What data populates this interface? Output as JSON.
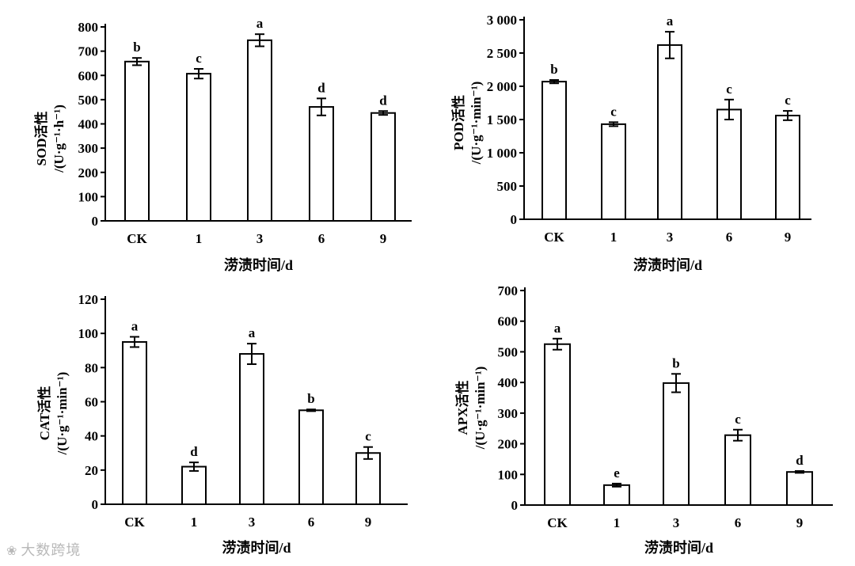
{
  "watermark": "大数跨境",
  "chart_data": [
    {
      "type": "bar",
      "ylabel": "SOD活性",
      "yunit": "/(U·g⁻¹·h⁻¹)",
      "xlabel": "涝渍时间/d",
      "categories": [
        "CK",
        "1",
        "3",
        "6",
        "9"
      ],
      "values": [
        657,
        607,
        745,
        470,
        445
      ],
      "errors": [
        15,
        20,
        25,
        35,
        8
      ],
      "letters": [
        "b",
        "c",
        "a",
        "d",
        "d"
      ],
      "ylim": [
        0,
        800
      ],
      "yticks": [
        0,
        100,
        200,
        300,
        400,
        500,
        600,
        700,
        800
      ],
      "ytick_labels": [
        "0",
        "100",
        "200",
        "300",
        "400",
        "500",
        "600",
        "700",
        "800"
      ]
    },
    {
      "type": "bar",
      "ylabel": "POD活性",
      "yunit": "/(U·g⁻¹·min⁻¹)",
      "xlabel": "涝渍时间/d",
      "categories": [
        "CK",
        "1",
        "3",
        "6",
        "9"
      ],
      "values": [
        2070,
        1430,
        2620,
        1650,
        1560
      ],
      "errors": [
        25,
        30,
        200,
        150,
        70
      ],
      "letters": [
        "b",
        "c",
        "a",
        "c",
        "c"
      ],
      "ylim": [
        0,
        3000
      ],
      "yticks": [
        0,
        500,
        1000,
        1500,
        2000,
        2500,
        3000
      ],
      "ytick_labels": [
        "0",
        "500",
        "1 000",
        "1 500",
        "2 000",
        "2 500",
        "3 000"
      ]
    },
    {
      "type": "bar",
      "ylabel": "CAT活性",
      "yunit": "/(U·g⁻¹·min⁻¹)",
      "xlabel": "涝渍时间/d",
      "categories": [
        "CK",
        "1",
        "3",
        "6",
        "9"
      ],
      "values": [
        95,
        22,
        88,
        55,
        30
      ],
      "errors": [
        3,
        2.5,
        6,
        0.5,
        3.5
      ],
      "letters": [
        "a",
        "d",
        "a",
        "b",
        "c"
      ],
      "ylim": [
        0,
        120
      ],
      "yticks": [
        0,
        20,
        40,
        60,
        80,
        100,
        120
      ],
      "ytick_labels": [
        "0",
        "20",
        "40",
        "60",
        "80",
        "100",
        "120"
      ]
    },
    {
      "type": "bar",
      "ylabel": "APX活性",
      "yunit": "/(U·g⁻¹·min⁻¹)",
      "xlabel": "涝渍时间/d",
      "categories": [
        "CK",
        "1",
        "3",
        "6",
        "9"
      ],
      "values": [
        525,
        65,
        398,
        228,
        108
      ],
      "errors": [
        18,
        5,
        30,
        18,
        3
      ],
      "letters": [
        "a",
        "e",
        "b",
        "c",
        "d"
      ],
      "ylim": [
        0,
        700
      ],
      "yticks": [
        0,
        100,
        200,
        300,
        400,
        500,
        600,
        700
      ],
      "ytick_labels": [
        "0",
        "100",
        "200",
        "300",
        "400",
        "500",
        "600",
        "700"
      ]
    }
  ]
}
